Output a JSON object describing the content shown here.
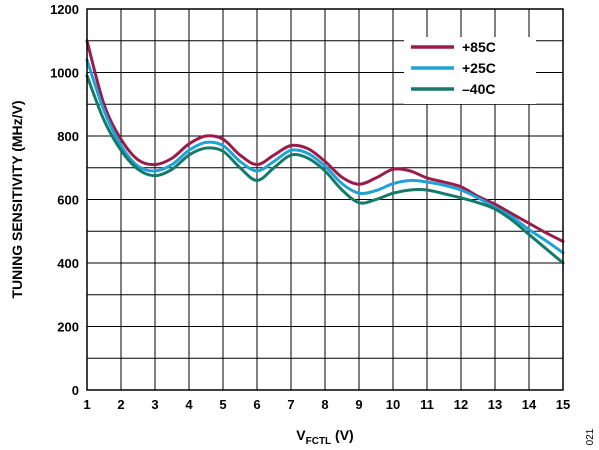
{
  "chart_data": {
    "type": "line",
    "xlabel_main": "V",
    "xlabel_sub": "FCTL",
    "xlabel_unit": " (V)",
    "ylabel": "TUNING SENSITIVITY (MHz/V)",
    "xlim": [
      1,
      15
    ],
    "ylim": [
      0,
      1200
    ],
    "xticks": [
      "1",
      "2",
      "3",
      "4",
      "5",
      "6",
      "7",
      "8",
      "9",
      "10",
      "11",
      "12",
      "13",
      "14",
      "15"
    ],
    "yticks": [
      "0",
      "200",
      "400",
      "600",
      "800",
      "1000",
      "1200"
    ],
    "grid": true,
    "legend_position": "top-right",
    "figure_id": "021",
    "series": [
      {
        "name": "+85C",
        "color": "#9b1b4a",
        "points": [
          [
            1,
            1100
          ],
          [
            1.5,
            900
          ],
          [
            2,
            790
          ],
          [
            2.5,
            725
          ],
          [
            3,
            710
          ],
          [
            3.5,
            730
          ],
          [
            4,
            775
          ],
          [
            4.5,
            800
          ],
          [
            5,
            790
          ],
          [
            5.5,
            740
          ],
          [
            6,
            710
          ],
          [
            6.5,
            740
          ],
          [
            7,
            770
          ],
          [
            7.5,
            760
          ],
          [
            8,
            720
          ],
          [
            8.5,
            670
          ],
          [
            9,
            648
          ],
          [
            9.5,
            668
          ],
          [
            10,
            695
          ],
          [
            10.5,
            690
          ],
          [
            11,
            668
          ],
          [
            11.5,
            655
          ],
          [
            12,
            640
          ],
          [
            12.5,
            610
          ],
          [
            13,
            585
          ],
          [
            13.5,
            555
          ],
          [
            14,
            525
          ],
          [
            14.5,
            495
          ],
          [
            15,
            468
          ]
        ]
      },
      {
        "name": "+25C",
        "color": "#1fa2d6",
        "points": [
          [
            1,
            1040
          ],
          [
            1.5,
            880
          ],
          [
            2,
            770
          ],
          [
            2.5,
            705
          ],
          [
            3,
            690
          ],
          [
            3.5,
            710
          ],
          [
            4,
            755
          ],
          [
            4.5,
            780
          ],
          [
            5,
            770
          ],
          [
            5.5,
            720
          ],
          [
            6,
            690
          ],
          [
            6.5,
            720
          ],
          [
            7,
            755
          ],
          [
            7.5,
            745
          ],
          [
            8,
            705
          ],
          [
            8.5,
            650
          ],
          [
            9,
            620
          ],
          [
            9.5,
            628
          ],
          [
            10,
            650
          ],
          [
            10.5,
            660
          ],
          [
            11,
            655
          ],
          [
            11.5,
            645
          ],
          [
            12,
            630
          ],
          [
            12.5,
            605
          ],
          [
            13,
            575
          ],
          [
            13.5,
            545
          ],
          [
            14,
            505
          ],
          [
            14.5,
            470
          ],
          [
            15,
            432
          ]
        ]
      },
      {
        "name": "–40C",
        "color": "#167a6a",
        "points": [
          [
            1,
            990
          ],
          [
            1.5,
            850
          ],
          [
            2,
            755
          ],
          [
            2.5,
            695
          ],
          [
            3,
            675
          ],
          [
            3.5,
            695
          ],
          [
            4,
            740
          ],
          [
            4.5,
            762
          ],
          [
            5,
            752
          ],
          [
            5.5,
            700
          ],
          [
            6,
            660
          ],
          [
            6.5,
            700
          ],
          [
            7,
            740
          ],
          [
            7.5,
            730
          ],
          [
            8,
            690
          ],
          [
            8.5,
            630
          ],
          [
            9,
            590
          ],
          [
            9.5,
            600
          ],
          [
            10,
            620
          ],
          [
            10.5,
            630
          ],
          [
            11,
            630
          ],
          [
            11.5,
            618
          ],
          [
            12,
            605
          ],
          [
            12.5,
            590
          ],
          [
            13,
            570
          ],
          [
            13.5,
            535
          ],
          [
            14,
            490
          ],
          [
            14.5,
            445
          ],
          [
            15,
            400
          ]
        ]
      }
    ]
  }
}
